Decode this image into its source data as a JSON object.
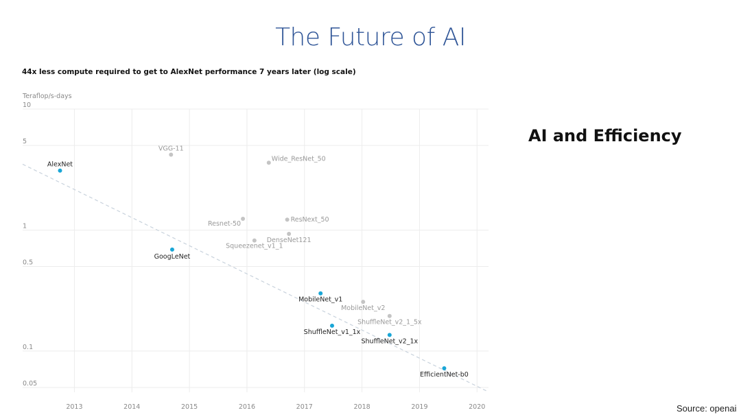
{
  "slide": {
    "title": "The Future of AI",
    "side_heading": "AI and Efficiency",
    "source": "Source: openai"
  },
  "colors": {
    "title": "#2f5597",
    "highlight_point": "#1aa6d6",
    "gray_point": "#c4c4c4",
    "highlight_label": "#222222",
    "gray_label": "#999999",
    "trend": "#c8d2dc"
  },
  "chart_data": {
    "type": "scatter",
    "title": "44x less compute required to get to AlexNet performance 7 years later (log scale)",
    "ylabel": "Teraflop/s-days",
    "xlabel": "",
    "yscale": "log",
    "xlim": [
      2012.1,
      2020.2
    ],
    "ylim": [
      0.045,
      10
    ],
    "y_ticks": [
      {
        "value": 10,
        "label": "10"
      },
      {
        "value": 5,
        "label": "5"
      },
      {
        "value": 1,
        "label": "1"
      },
      {
        "value": 0.5,
        "label": "0.5"
      },
      {
        "value": 0.1,
        "label": "0.1"
      },
      {
        "value": 0.05,
        "label": "0.05"
      }
    ],
    "x_ticks": [
      {
        "value": 2013,
        "label": "2013"
      },
      {
        "value": 2014,
        "label": "2014"
      },
      {
        "value": 2015,
        "label": "2015"
      },
      {
        "value": 2016,
        "label": "2016"
      },
      {
        "value": 2017,
        "label": "2017"
      },
      {
        "value": 2018,
        "label": "2018"
      },
      {
        "value": 2019,
        "label": "2019"
      },
      {
        "value": 2020,
        "label": "2020"
      }
    ],
    "trend_line": {
      "x": [
        2012.1,
        2020.2
      ],
      "y": [
        3.5,
        0.046
      ]
    },
    "points": [
      {
        "name": "AlexNet",
        "x": 2012.75,
        "y": 3.1,
        "highlight": true
      },
      {
        "name": "VGG-11",
        "x": 2014.68,
        "y": 4.2,
        "highlight": false
      },
      {
        "name": "Wide_ResNet_50",
        "x": 2016.38,
        "y": 3.6,
        "highlight": false
      },
      {
        "name": "Resnet-50",
        "x": 2015.93,
        "y": 1.24,
        "highlight": false
      },
      {
        "name": "ResNext_50",
        "x": 2016.7,
        "y": 1.22,
        "highlight": false
      },
      {
        "name": "DenseNet121",
        "x": 2016.73,
        "y": 0.93,
        "highlight": false
      },
      {
        "name": "Squeezenet_v1_1",
        "x": 2016.13,
        "y": 0.82,
        "highlight": false
      },
      {
        "name": "GoogLeNet",
        "x": 2014.7,
        "y": 0.69,
        "highlight": true
      },
      {
        "name": "MobileNet_v1",
        "x": 2017.28,
        "y": 0.3,
        "highlight": true
      },
      {
        "name": "MobileNet_v2",
        "x": 2018.02,
        "y": 0.255,
        "highlight": false
      },
      {
        "name": "ShuffleNet_v2_1_5x",
        "x": 2018.48,
        "y": 0.195,
        "highlight": false
      },
      {
        "name": "ShuffleNet_v1_1x",
        "x": 2017.48,
        "y": 0.162,
        "highlight": true
      },
      {
        "name": "ShuffleNet_v2_1x",
        "x": 2018.48,
        "y": 0.136,
        "highlight": true
      },
      {
        "name": "EfficientNet-b0",
        "x": 2019.43,
        "y": 0.072,
        "highlight": true
      }
    ]
  }
}
